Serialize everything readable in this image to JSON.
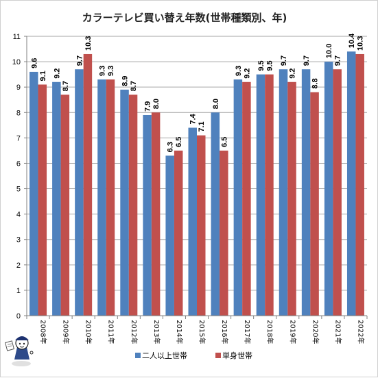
{
  "chart_data": {
    "type": "bar",
    "title": "カラーテレビ買い替え年数(世帯種類別、年)",
    "xlabel": "",
    "ylabel": "",
    "categories": [
      "2008年",
      "2009年",
      "2010年",
      "2011年",
      "2012年",
      "2013年",
      "2014年",
      "2015年",
      "2016年",
      "2017年",
      "2018年",
      "2019年",
      "2020年",
      "2021年",
      "2022年"
    ],
    "series": [
      {
        "name": "二人以上世帯",
        "color": "#4f81bd",
        "values": [
          9.6,
          9.2,
          9.7,
          9.3,
          8.9,
          7.9,
          6.3,
          7.4,
          8.0,
          9.3,
          9.5,
          9.7,
          9.7,
          10.0,
          10.4
        ]
      },
      {
        "name": "単身世帯",
        "color": "#c0504d",
        "values": [
          9.1,
          8.7,
          10.3,
          9.3,
          8.7,
          8.0,
          6.5,
          7.1,
          6.5,
          9.2,
          9.5,
          9.2,
          8.8,
          9.7,
          10.3
        ]
      }
    ],
    "ylim": [
      0,
      11
    ],
    "yticks": [
      0,
      1,
      2,
      3,
      4,
      5,
      6,
      7,
      8,
      9,
      10,
      11
    ],
    "grid": true,
    "legend_position": "bottom"
  }
}
